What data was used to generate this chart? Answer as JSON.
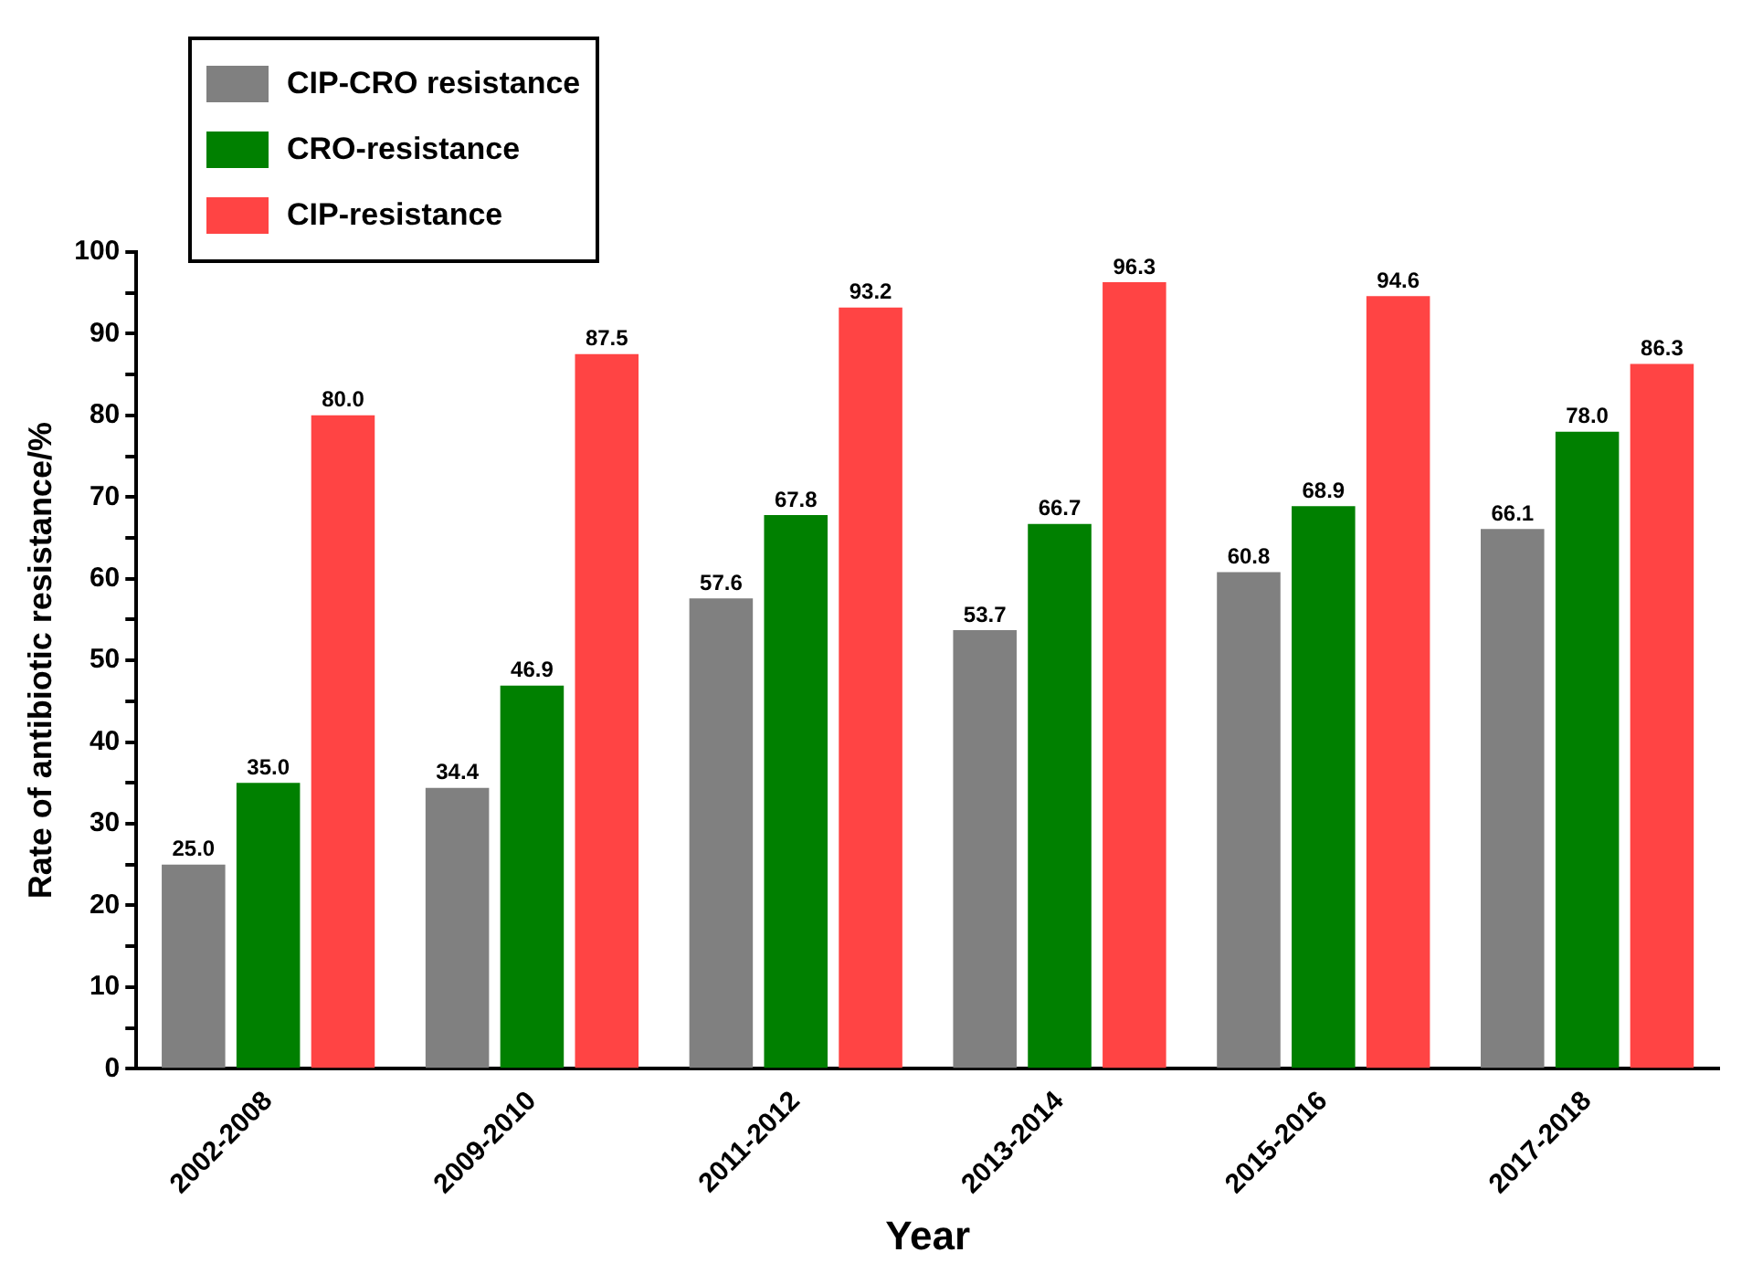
{
  "chart_data": {
    "type": "bar",
    "xlabel": "Year",
    "ylabel": "Rate of antibiotic resistance/%",
    "categories": [
      "2002-2008",
      "2009-2010",
      "2011-2012",
      "2013-2014",
      "2015-2016",
      "2017-2018"
    ],
    "series": [
      {
        "name": "CIP-CRO resistance",
        "color": "#808080",
        "values": [
          25.0,
          34.4,
          57.6,
          53.7,
          60.8,
          66.1
        ],
        "value_labels": [
          "25.0",
          "34.4",
          "57.6",
          "53.7",
          "60.8",
          "66.1"
        ]
      },
      {
        "name": "CRO-resistance",
        "color": "#008000",
        "values": [
          35.0,
          46.9,
          67.8,
          66.7,
          68.9,
          78.0
        ],
        "value_labels": [
          "35.0",
          "46.9",
          "67.8",
          "66.7",
          "68.9",
          "78.0"
        ]
      },
      {
        "name": "CIP-resistance",
        "color": "#ff4444",
        "values": [
          80.0,
          87.5,
          93.2,
          96.3,
          94.6,
          86.3
        ],
        "value_labels": [
          "80.0",
          "87.5",
          "93.2",
          "96.3",
          "94.6",
          "86.3"
        ]
      }
    ],
    "ylim": [
      0,
      100
    ],
    "yticks": [
      0,
      {
        "value": 5,
        "label": null
      },
      10,
      {
        "value": 15,
        "label": null
      },
      20,
      {
        "value": 25,
        "label": null
      },
      30,
      {
        "value": 35,
        "label": null
      },
      40,
      {
        "value": 45,
        "label": null
      },
      50,
      {
        "value": 55,
        "label": null
      },
      60,
      {
        "value": 65,
        "label": null
      },
      70,
      {
        "value": 75,
        "label": null
      },
      80,
      {
        "value": 85,
        "label": null
      },
      90,
      {
        "value": 95,
        "label": null
      },
      100
    ],
    "grid": false,
    "legend": "top left"
  }
}
